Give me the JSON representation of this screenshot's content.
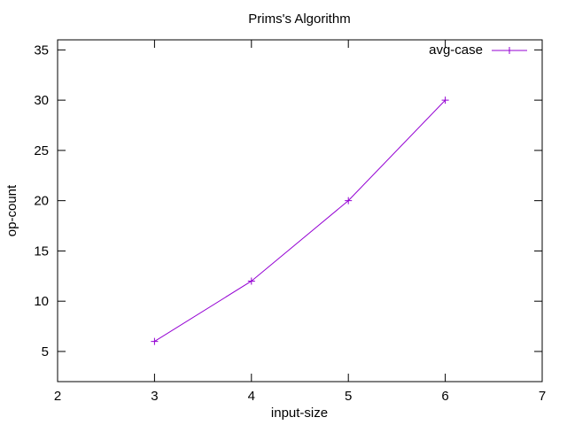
{
  "chart_data": {
    "type": "line",
    "title": "Prims's Algorithm",
    "xlabel": "input-size",
    "ylabel": "op-count",
    "xlim": [
      2,
      7
    ],
    "ylim": [
      2,
      36
    ],
    "xticks": [
      2,
      3,
      4,
      5,
      6,
      7
    ],
    "yticks": [
      5,
      10,
      15,
      20,
      25,
      30,
      35
    ],
    "grid": false,
    "legend_position": "top-right",
    "series": [
      {
        "name": "avg-case",
        "color": "#9400d3",
        "marker": "plus",
        "x": [
          3,
          4,
          5,
          6
        ],
        "y": [
          6,
          12,
          20,
          30
        ]
      }
    ]
  }
}
